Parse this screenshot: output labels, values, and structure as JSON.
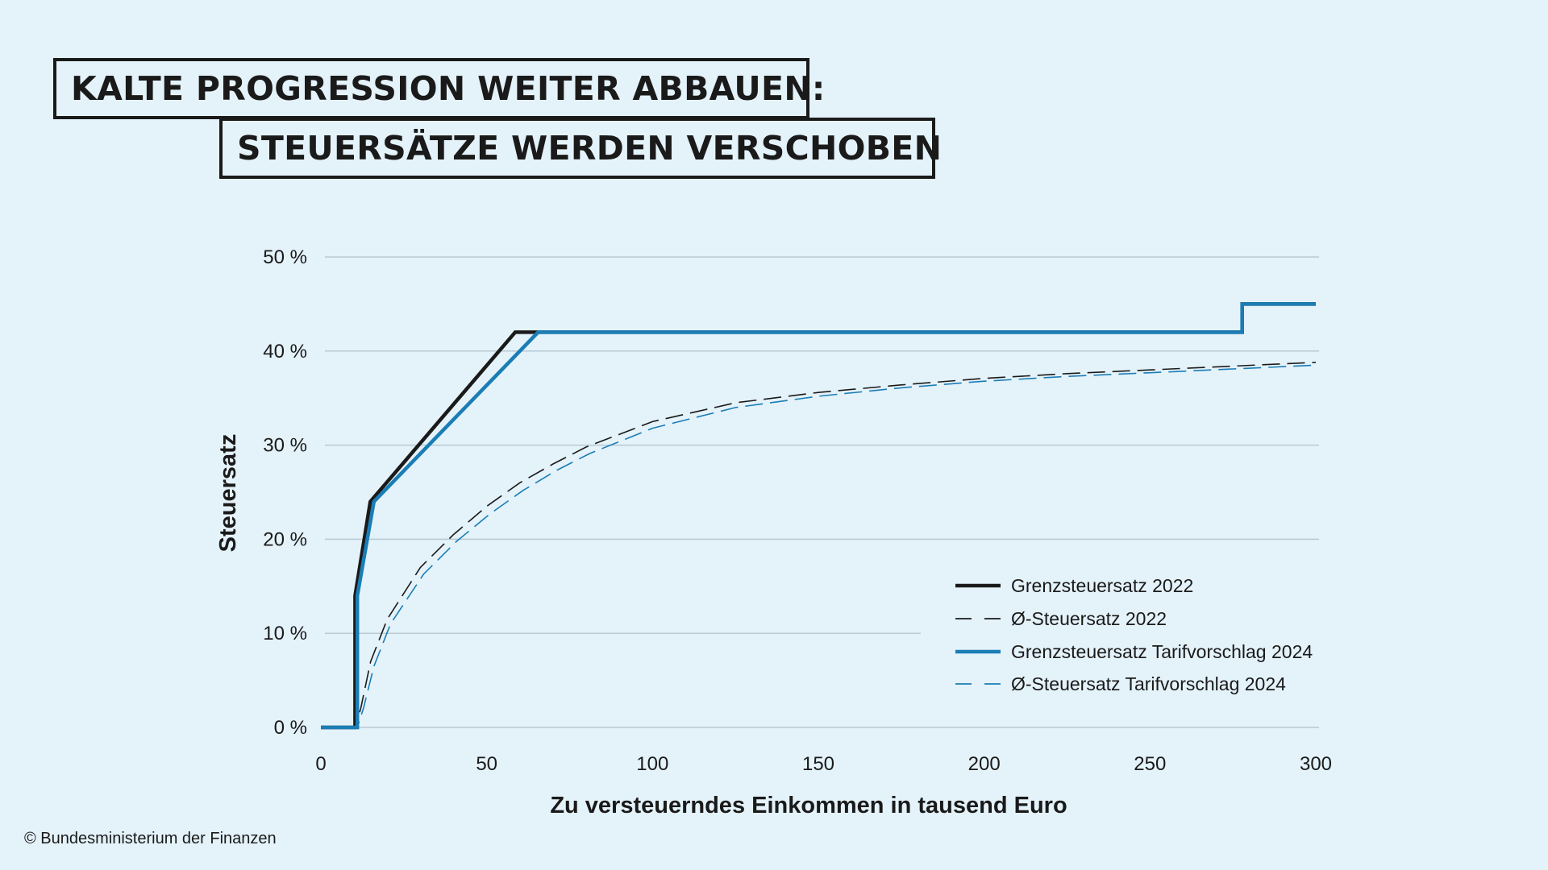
{
  "title": {
    "line1": "KALTE PROGRESSION WEITER ABBAUEN:",
    "line2": "STEUERSÄTZE WERDEN VERSCHOBEN"
  },
  "credit": "© Bundesministerium der Finanzen",
  "chart_data": {
    "type": "line",
    "xlabel": "Zu versteuerndes Einkommen in tausend Euro",
    "ylabel": "Steuersatz",
    "xlim": [
      0,
      300
    ],
    "ylim": [
      0,
      50
    ],
    "x_ticks": [
      "0",
      "50",
      "100",
      "150",
      "200",
      "250",
      "300"
    ],
    "y_ticks": [
      "0 %",
      "10 %",
      "20 %",
      "30 %",
      "40 %",
      "50 %"
    ],
    "grid": "horizontal",
    "legend_position": "bottom-right",
    "series": [
      {
        "name": "Grenzsteuersatz 2022",
        "style": "solid",
        "color": "#1a1a1a",
        "points": [
          [
            0,
            0
          ],
          [
            10.3,
            0
          ],
          [
            10.3,
            14
          ],
          [
            14.9,
            24
          ],
          [
            58.6,
            42
          ],
          [
            277.8,
            42
          ],
          [
            277.8,
            45
          ],
          [
            300,
            45
          ]
        ]
      },
      {
        "name": "Ø-Steuersatz 2022",
        "style": "dashed",
        "color": "#1a1a1a",
        "points": [
          [
            0,
            0
          ],
          [
            10.3,
            0
          ],
          [
            12,
            2
          ],
          [
            15,
            7
          ],
          [
            20,
            11.5
          ],
          [
            30,
            17
          ],
          [
            40,
            20.5
          ],
          [
            50,
            23.5
          ],
          [
            60,
            26
          ],
          [
            70,
            28
          ],
          [
            80,
            29.8
          ],
          [
            100,
            32.5
          ],
          [
            125,
            34.5
          ],
          [
            150,
            35.6
          ],
          [
            175,
            36.4
          ],
          [
            200,
            37.1
          ],
          [
            225,
            37.6
          ],
          [
            250,
            38
          ],
          [
            275,
            38.4
          ],
          [
            300,
            38.8
          ]
        ]
      },
      {
        "name": "Grenzsteuersatz Tarifvorschlag 2024",
        "style": "solid",
        "color": "#1a7db5",
        "points": [
          [
            0,
            0
          ],
          [
            11,
            0
          ],
          [
            11,
            14
          ],
          [
            16,
            24
          ],
          [
            65.5,
            42
          ],
          [
            277.8,
            42
          ],
          [
            277.8,
            45
          ],
          [
            300,
            45
          ]
        ]
      },
      {
        "name": "Ø-Steuersatz Tarifvorschlag 2024",
        "style": "dashed",
        "color": "#1a7db5",
        "points": [
          [
            0,
            0
          ],
          [
            11,
            0
          ],
          [
            12.8,
            2
          ],
          [
            16,
            6.5
          ],
          [
            21,
            11
          ],
          [
            31,
            16.3
          ],
          [
            41,
            19.8
          ],
          [
            51,
            22.7
          ],
          [
            61,
            25.2
          ],
          [
            71,
            27.3
          ],
          [
            81,
            29.1
          ],
          [
            100,
            31.8
          ],
          [
            125,
            34
          ],
          [
            150,
            35.2
          ],
          [
            175,
            36.1
          ],
          [
            200,
            36.8
          ],
          [
            225,
            37.3
          ],
          [
            250,
            37.7
          ],
          [
            275,
            38.1
          ],
          [
            300,
            38.5
          ]
        ]
      }
    ]
  }
}
